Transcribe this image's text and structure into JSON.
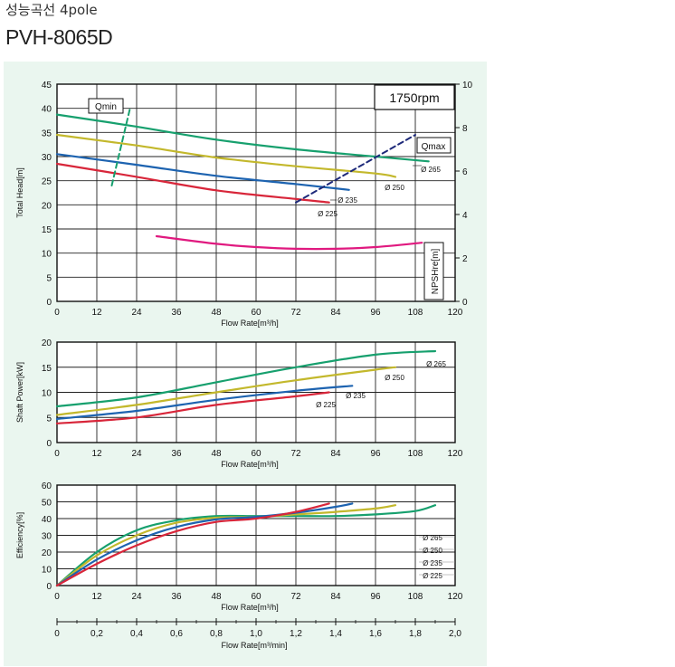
{
  "header": {
    "title_ko": "성능곡선 4pole",
    "model": "PVH-8065D"
  },
  "colors": {
    "panel_bg": "#eaf6ef",
    "d265": "#17a06e",
    "d250": "#c3b82c",
    "d235": "#1d63b0",
    "d225": "#d8263a",
    "npsh": "#e0197f",
    "qmin": "#17a06e",
    "qmax": "#1e2a7a",
    "rpm": "#17a06e"
  },
  "chart_data": [
    {
      "id": "head",
      "type": "line",
      "ylabel": "Total Head[m]",
      "xlabel": "Flow Rate[m³/h]",
      "y2label": "NPSHre[m]",
      "xlim": [
        0,
        120
      ],
      "ylim": [
        0,
        45
      ],
      "y2lim": [
        0,
        10
      ],
      "xticks": [
        "0",
        "12",
        "24",
        "36",
        "48",
        "60",
        "72",
        "84",
        "96",
        "108",
        "120"
      ],
      "yticks": [
        "0",
        "5",
        "10",
        "15",
        "20",
        "25",
        "30",
        "35",
        "40",
        "45"
      ],
      "y2ticks": [
        "0",
        "2",
        "4",
        "6",
        "8",
        "10"
      ],
      "rpm_label": "1750rpm",
      "qmin_label": "Qmin",
      "qmax_label": "Qmax",
      "series": [
        {
          "name": "Ø 265",
          "color": "d265",
          "x": [
            0,
            24,
            48,
            72,
            96,
            112
          ],
          "y": [
            38.7,
            36.2,
            33.5,
            31.5,
            30.0,
            29.0
          ]
        },
        {
          "name": "Ø 250",
          "color": "d250",
          "x": [
            0,
            24,
            48,
            72,
            96,
            102
          ],
          "y": [
            34.5,
            32.3,
            29.8,
            28.0,
            26.5,
            25.8
          ]
        },
        {
          "name": "Ø 235",
          "color": "d235",
          "x": [
            0,
            24,
            48,
            72,
            88
          ],
          "y": [
            30.5,
            28.3,
            26.0,
            24.3,
            23.1
          ]
        },
        {
          "name": "Ø 225",
          "color": "d225",
          "x": [
            0,
            24,
            48,
            72,
            82
          ],
          "y": [
            28.5,
            25.8,
            23.0,
            21.2,
            20.5
          ]
        },
        {
          "name": "",
          "axis": "y2",
          "color": "npsh",
          "x": [
            30,
            48,
            60,
            72,
            84,
            96,
            110
          ],
          "y": [
            3.0,
            2.65,
            2.5,
            2.42,
            2.42,
            2.5,
            2.7
          ]
        },
        {
          "name": "Qmin",
          "color": "qmin",
          "dash": true,
          "x": [
            16.5,
            22
          ],
          "y": [
            24,
            40
          ]
        },
        {
          "name": "Qmax",
          "color": "qmax",
          "dash": true,
          "x": [
            72,
            108
          ],
          "y": [
            20.5,
            34.5
          ]
        }
      ]
    },
    {
      "id": "power",
      "type": "line",
      "ylabel": "Shaft Power[kW]",
      "xlabel": "Flow Rate[m³/h]",
      "xlim": [
        0,
        120
      ],
      "ylim": [
        0,
        20
      ],
      "xticks": [
        "0",
        "12",
        "24",
        "36",
        "48",
        "60",
        "72",
        "84",
        "96",
        "108",
        "120"
      ],
      "yticks": [
        "0",
        "5",
        "10",
        "15",
        "20"
      ],
      "series": [
        {
          "name": "Ø 265",
          "color": "d265",
          "x": [
            0,
            24,
            48,
            72,
            96,
            114
          ],
          "y": [
            7.2,
            9.0,
            12.0,
            15.0,
            17.5,
            18.2
          ]
        },
        {
          "name": "Ø 250",
          "color": "d250",
          "x": [
            0,
            24,
            48,
            72,
            96,
            102
          ],
          "y": [
            5.5,
            7.5,
            10.0,
            12.4,
            14.5,
            15.0
          ]
        },
        {
          "name": "Ø 235",
          "color": "d235",
          "x": [
            0,
            24,
            48,
            72,
            89
          ],
          "y": [
            4.7,
            6.3,
            8.5,
            10.3,
            11.3
          ]
        },
        {
          "name": "Ø 225",
          "color": "d225",
          "x": [
            0,
            24,
            48,
            72,
            82
          ],
          "y": [
            3.8,
            5.0,
            7.5,
            9.2,
            10.0
          ]
        }
      ]
    },
    {
      "id": "efficiency",
      "type": "line",
      "ylabel": "Efficiency[%]",
      "xlabel": "Flow Rate[m³/h]",
      "x2label": "Flow Rate[m³/min]",
      "xlim": [
        0,
        120
      ],
      "ylim": [
        0,
        60
      ],
      "xticks": [
        "0",
        "12",
        "24",
        "36",
        "48",
        "60",
        "72",
        "84",
        "96",
        "108",
        "120"
      ],
      "yticks": [
        "0",
        "10",
        "20",
        "30",
        "40",
        "50",
        "60"
      ],
      "x2ticks": [
        "0",
        "0,2",
        "0,4",
        "0,6",
        "0,8",
        "1,0",
        "1,2",
        "1,4",
        "1,6",
        "1,8",
        "2,0"
      ],
      "legend": [
        "Ø 265",
        "Ø 250",
        "Ø 235",
        "Ø 225"
      ],
      "series": [
        {
          "name": "Ø 265",
          "color": "d265",
          "x": [
            0,
            12,
            24,
            36,
            48,
            60,
            72,
            84,
            96,
            108,
            114
          ],
          "y": [
            0,
            20,
            33,
            39,
            41.5,
            41.5,
            41.5,
            41.5,
            42.5,
            44.5,
            48
          ]
        },
        {
          "name": "Ø 250",
          "color": "d250",
          "x": [
            0,
            12,
            24,
            36,
            48,
            60,
            72,
            84,
            96,
            102
          ],
          "y": [
            0,
            18,
            30,
            37.5,
            40.5,
            41,
            42.5,
            44,
            46,
            48
          ]
        },
        {
          "name": "Ø 235",
          "color": "d235",
          "x": [
            0,
            12,
            24,
            36,
            48,
            60,
            72,
            84,
            89
          ],
          "y": [
            0,
            15.5,
            27,
            35,
            39.5,
            41,
            43.5,
            47,
            49
          ]
        },
        {
          "name": "Ø 225",
          "color": "d225",
          "x": [
            0,
            12,
            24,
            36,
            48,
            60,
            72,
            82
          ],
          "y": [
            0,
            13,
            24,
            32.5,
            38,
            40,
            44,
            49
          ]
        }
      ]
    }
  ]
}
